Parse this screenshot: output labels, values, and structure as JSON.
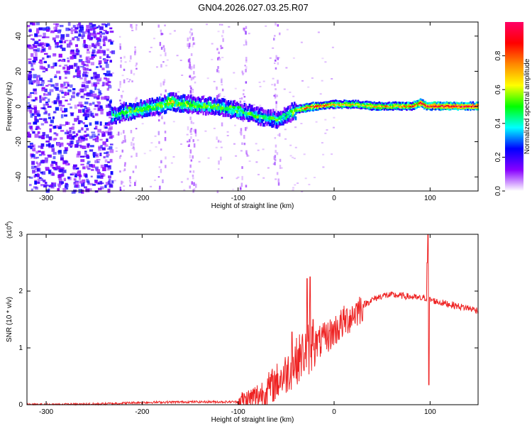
{
  "title": "GN04.2026.027.03.25.R07",
  "chart_data": [
    {
      "type": "heatmap",
      "name": "spectrogram",
      "xlabel": "Height of straight line (km)",
      "ylabel": "Frequency (Hz)",
      "xlim": [
        -320,
        150
      ],
      "ylim": [
        -48,
        48
      ],
      "xticks": [
        -300,
        -200,
        -100,
        0,
        100
      ],
      "xtick_labels": [
        "-300",
        "-200",
        "-100",
        "0",
        "100"
      ],
      "yticks": [
        -40,
        -20,
        0,
        20,
        40
      ],
      "ytick_labels": [
        "-40",
        "-20",
        "0",
        "20",
        "40"
      ],
      "colorbar": {
        "label": "Normalized spectral amplitude",
        "range": [
          0,
          1
        ],
        "ticks": [
          0.0,
          0.2,
          0.4,
          0.6,
          0.8
        ],
        "tick_labels": [
          "0.0",
          "0.2",
          "0.4",
          "0.6",
          "0.8"
        ],
        "colormap": [
          "#ffffff",
          "#8800ff",
          "#0000ff",
          "#00ffff",
          "#00ff00",
          "#ffff00",
          "#ff8800",
          "#ff0000",
          "#ff0066"
        ]
      },
      "ridge": {
        "x": [
          -232,
          -220,
          -200,
          -180,
          -170,
          -160,
          -140,
          -120,
          -100,
          -80,
          -60,
          -50,
          -45,
          -40,
          -30,
          -20,
          0,
          20,
          40,
          60,
          80,
          90,
          95,
          100,
          150
        ],
        "freq": [
          -5,
          -3,
          -1,
          1,
          3,
          2,
          1,
          0,
          -2,
          -5,
          -7,
          -5,
          -3,
          -2,
          -1,
          0,
          1,
          1,
          0,
          0,
          0,
          2,
          0,
          0,
          0
        ],
        "intensity": [
          0.45,
          0.5,
          0.5,
          0.55,
          0.7,
          0.55,
          0.5,
          0.5,
          0.45,
          0.45,
          0.45,
          0.4,
          0.5,
          0.6,
          0.75,
          0.85,
          0.7,
          0.65,
          0.7,
          0.75,
          0.8,
          0.9,
          0.85,
          0.95,
          0.95
        ]
      },
      "noise_region": [
        -320,
        -232
      ]
    },
    {
      "type": "line",
      "name": "snr",
      "xlabel": "Height of straight line (km)",
      "ylabel": "SNR (10 * v/v)",
      "y_multiplier": "(x10",
      "y_multiplier_exp": "4",
      "y_multiplier_close": ")",
      "xlim": [
        -320,
        150
      ],
      "ylim": [
        0,
        3
      ],
      "xticks": [
        -300,
        -200,
        -100,
        0,
        100
      ],
      "xtick_labels": [
        "-300",
        "-200",
        "-100",
        "0",
        "100"
      ],
      "yticks": [
        0,
        1,
        2,
        3
      ],
      "ytick_labels": [
        "0",
        "1",
        "2",
        "3"
      ],
      "color": "#ee2222",
      "envelope": {
        "x": [
          -320,
          -250,
          -200,
          -150,
          -100,
          -90,
          -80,
          -70,
          -60,
          -50,
          -40,
          -30,
          -20,
          -10,
          0,
          10,
          20,
          30,
          40,
          50,
          60,
          70,
          80,
          90,
          95,
          100,
          110,
          120,
          130,
          140,
          150
        ],
        "y": [
          0.0,
          0.01,
          0.04,
          0.05,
          0.05,
          0.08,
          0.15,
          0.25,
          0.4,
          0.55,
          0.75,
          0.95,
          1.05,
          1.15,
          1.3,
          1.45,
          1.6,
          1.75,
          1.85,
          1.92,
          1.93,
          1.92,
          1.9,
          1.87,
          1.88,
          1.85,
          1.8,
          1.77,
          1.73,
          1.7,
          1.66
        ]
      },
      "spikes": [
        {
          "x": -44,
          "y": 1.28
        },
        {
          "x": -28,
          "y": 2.22
        },
        {
          "x": -25,
          "y": 2.25
        },
        {
          "x": -22,
          "y": 1.5
        },
        {
          "x": 97,
          "y": 2.5
        },
        {
          "x": 98,
          "y": 3.0
        },
        {
          "x": 98.5,
          "y": 0.35
        }
      ]
    }
  ]
}
